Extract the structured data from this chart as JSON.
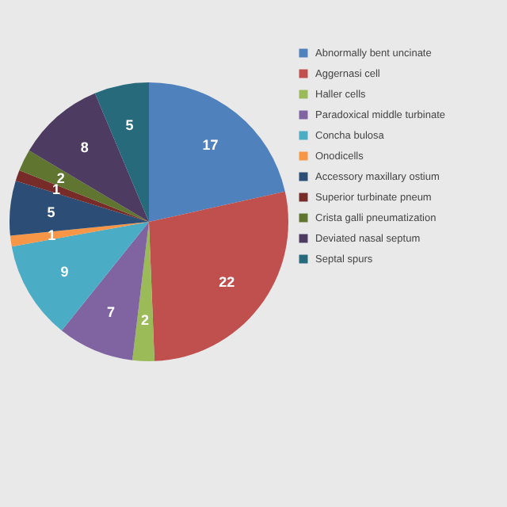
{
  "chart_data": {
    "type": "pie",
    "categories": [
      "Abnormally bent uncinate",
      "Aggernasi cell",
      "Haller cells",
      "Paradoxical middle turbinate",
      "Concha bulosa",
      "Onodicells",
      "Accessory maxillary ostium",
      "Superior turbinate pneum",
      "Crista galli pneumatization",
      "Deviated nasal septum",
      "Septal spurs"
    ],
    "values": [
      17,
      22,
      2,
      7,
      9,
      1,
      5,
      1,
      2,
      8,
      5
    ],
    "colors": [
      "#4f81bd",
      "#c0504d",
      "#9bbb59",
      "#8064a2",
      "#4bacc6",
      "#f79646",
      "#2c4d75",
      "#772c2a",
      "#5f7530",
      "#4d3b62",
      "#276a7c"
    ],
    "data_labels": true,
    "legend": "right"
  }
}
